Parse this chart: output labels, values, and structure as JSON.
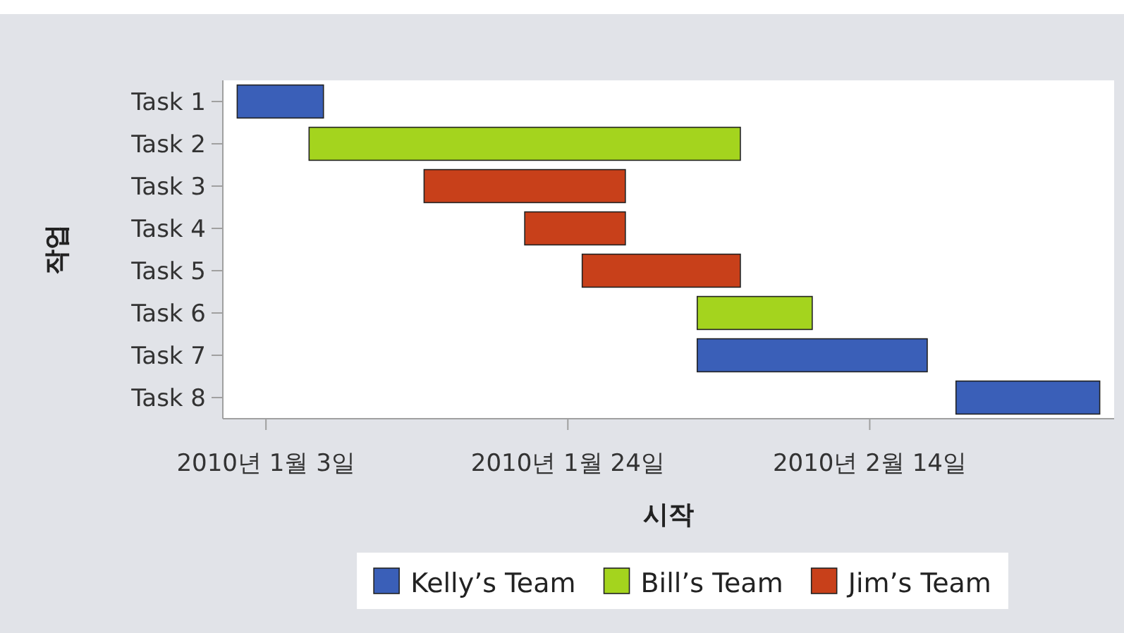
{
  "chart_data": {
    "type": "bar",
    "orientation": "horizontal",
    "xlabel": "시작",
    "ylabel": "작업",
    "categories": [
      "Task 1",
      "Task 2",
      "Task 3",
      "Task 4",
      "Task 5",
      "Task 6",
      "Task 7",
      "Task 8"
    ],
    "xlim": [
      "2009-12-31",
      "2010-03-03"
    ],
    "xticks": [
      {
        "value": "2010-01-03",
        "label": "2010년 1월 3일"
      },
      {
        "value": "2010-01-24",
        "label": "2010년 1월 24일"
      },
      {
        "value": "2010-02-14",
        "label": "2010년 2월 14일"
      }
    ],
    "series": [
      {
        "name": "Kelly’s Team",
        "color": "#3a5fb8",
        "base": [
          14610,
          null,
          null,
          null,
          null,
          null,
          14642,
          14660
        ],
        "values": [
          6,
          null,
          null,
          null,
          null,
          null,
          16,
          10
        ]
      },
      {
        "name": "Bill’s Team",
        "color": "#a4d41e",
        "base": [
          null,
          14615,
          null,
          null,
          null,
          14642,
          null,
          null
        ],
        "values": [
          null,
          30,
          null,
          null,
          null,
          8,
          null,
          null
        ]
      },
      {
        "name": "Jim’s Team",
        "color": "#c8401a",
        "base": [
          null,
          null,
          14623,
          14630,
          14634,
          null,
          null,
          null
        ],
        "values": [
          null,
          null,
          14,
          7,
          11,
          null,
          null,
          null
        ]
      }
    ],
    "legend": "bottom",
    "grid": false
  }
}
